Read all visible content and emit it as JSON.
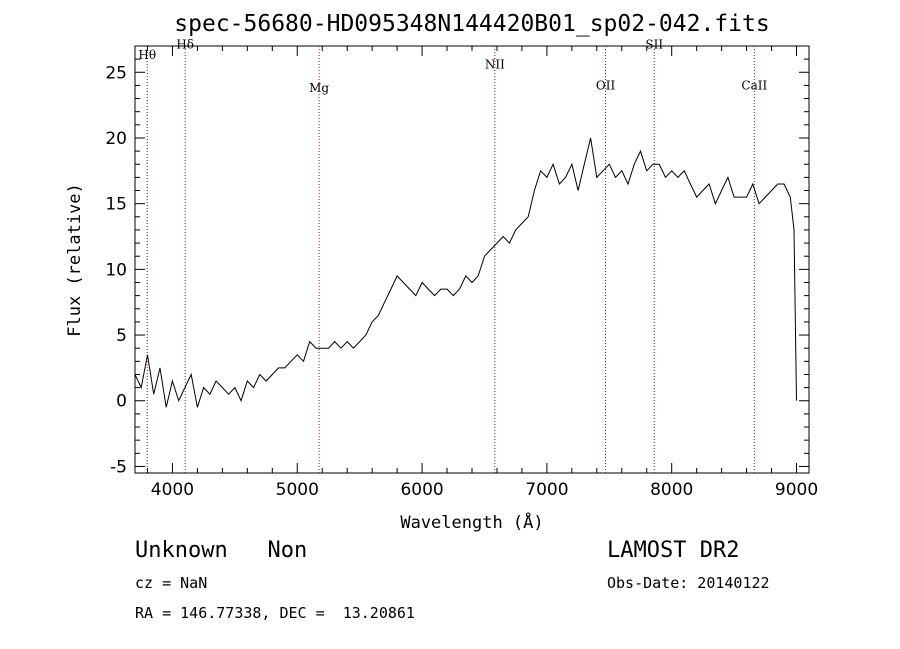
{
  "chart_data": {
    "type": "line",
    "title": "spec-56680-HD095348N144420B01_sp02-042.fits",
    "xlabel": "Wavelength (Å)",
    "ylabel": "Flux (relative)",
    "xlim": [
      3700,
      9100
    ],
    "ylim": [
      -5.5,
      27
    ],
    "x_ticks": [
      4000,
      5000,
      6000,
      7000,
      8000,
      9000
    ],
    "y_ticks": [
      -5,
      0,
      5,
      10,
      15,
      20,
      25
    ],
    "grid": false,
    "series": [
      {
        "color": "#000000",
        "x": [
          3700,
          3750,
          3800,
          3850,
          3900,
          3950,
          4000,
          4050,
          4100,
          4150,
          4200,
          4250,
          4300,
          4350,
          4400,
          4450,
          4500,
          4550,
          4600,
          4650,
          4700,
          4750,
          4800,
          4850,
          4900,
          4950,
          5000,
          5050,
          5100,
          5150,
          5200,
          5250,
          5300,
          5350,
          5400,
          5450,
          5500,
          5550,
          5600,
          5650,
          5700,
          5750,
          5800,
          5850,
          5900,
          5950,
          6000,
          6050,
          6100,
          6150,
          6200,
          6250,
          6300,
          6350,
          6400,
          6450,
          6500,
          6550,
          6600,
          6650,
          6700,
          6750,
          6800,
          6850,
          6900,
          6950,
          7000,
          7050,
          7100,
          7150,
          7200,
          7250,
          7300,
          7350,
          7400,
          7450,
          7500,
          7550,
          7600,
          7650,
          7700,
          7750,
          7800,
          7850,
          7900,
          7950,
          8000,
          8050,
          8100,
          8150,
          8200,
          8250,
          8300,
          8350,
          8400,
          8450,
          8500,
          8550,
          8600,
          8650,
          8700,
          8750,
          8800,
          8850,
          8900,
          8950,
          8980,
          9000
        ],
        "y": [
          2.0,
          1.0,
          3.5,
          0.5,
          2.5,
          -0.5,
          1.5,
          0.0,
          1.0,
          2.0,
          -0.5,
          1.0,
          0.5,
          1.5,
          1.0,
          0.5,
          1.0,
          0.0,
          1.5,
          1.0,
          2.0,
          1.5,
          2.0,
          2.5,
          2.5,
          3.0,
          3.5,
          3.0,
          4.5,
          4.0,
          4.0,
          4.0,
          4.5,
          4.0,
          4.5,
          4.0,
          4.5,
          5.0,
          6.0,
          6.5,
          7.5,
          8.5,
          9.5,
          9.0,
          8.5,
          8.0,
          9.0,
          8.5,
          8.0,
          8.5,
          8.5,
          8.0,
          8.5,
          9.5,
          9.0,
          9.5,
          11.0,
          11.5,
          12.0,
          12.5,
          12.0,
          13.0,
          13.5,
          14.0,
          16.0,
          17.5,
          17.0,
          18.0,
          16.5,
          17.0,
          18.0,
          16.0,
          18.0,
          20.0,
          17.0,
          17.5,
          18.0,
          17.0,
          17.5,
          16.5,
          18.0,
          19.0,
          17.5,
          18.0,
          18.0,
          17.0,
          17.5,
          17.0,
          17.5,
          16.5,
          15.5,
          16.0,
          16.5,
          15.0,
          16.0,
          17.0,
          15.5,
          15.5,
          15.5,
          16.5,
          15.0,
          15.5,
          16.0,
          16.5,
          16.5,
          15.5,
          13.0,
          0.0
        ]
      }
    ],
    "line_markers": [
      {
        "label": "Hθ",
        "x": 3798
      },
      {
        "label": "Hδ",
        "x": 4102
      },
      {
        "label": "Mg",
        "x": 5175
      },
      {
        "label": "NII",
        "x": 6583
      },
      {
        "label": "OII",
        "x": 7470
      },
      {
        "label": "SII",
        "x": 7860
      },
      {
        "label": "CaII",
        "x": 8662
      }
    ],
    "marker_color": "#cc0000"
  },
  "info": {
    "class_line": "Unknown   Non",
    "survey": "LAMOST DR2",
    "cz": "cz = NaN",
    "obs_date": "Obs-Date: 20140122",
    "coords": "RA = 146.77338, DEC =  13.20861"
  }
}
